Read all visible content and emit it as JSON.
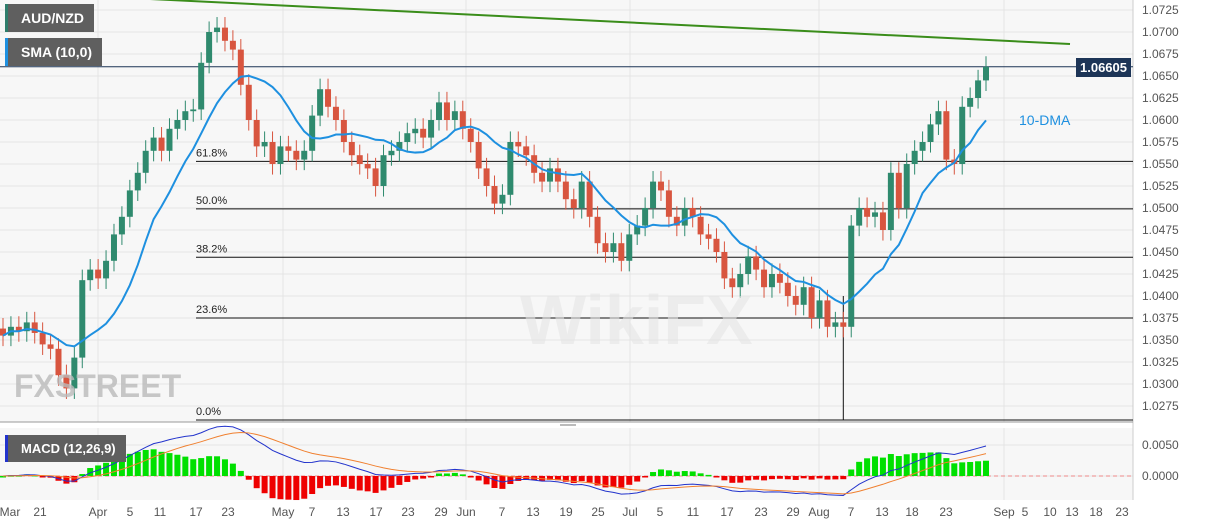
{
  "header": {
    "symbol": "AUD/NZD",
    "indicator": "SMA (10,0)",
    "macd": "MACD (12,26,9)",
    "last_price": "1.06605",
    "dma_label": "10-DMA",
    "watermark": "FXSTREET",
    "watermark2": "WikiFX"
  },
  "chart_data": {
    "type": "candlestick",
    "series_name": "AUD/NZD",
    "ylim": [
      1.0262,
      1.0737
    ],
    "y_ticks": [
      "1.0725",
      "1.0700",
      "1.0675",
      "1.0650",
      "1.0625",
      "1.0600",
      "1.0575",
      "1.0550",
      "1.0525",
      "1.0500",
      "1.0475",
      "1.0450",
      "1.0425",
      "1.0400",
      "1.0375",
      "1.0350",
      "1.0325",
      "1.0300",
      "1.0275"
    ],
    "x_ticks": [
      "Mar",
      "21",
      "Apr",
      "5",
      "11",
      "17",
      "23",
      "May",
      "7",
      "13",
      "17",
      "23",
      "29",
      "Jun",
      "7",
      "13",
      "19",
      "25",
      "Jul",
      "5",
      "11",
      "17",
      "23",
      "29",
      "Aug",
      "7",
      "13",
      "18",
      "23",
      "Sep",
      "5",
      "10",
      "13",
      "18",
      "23"
    ],
    "closes": [
      1.0355,
      1.0365,
      1.036,
      1.037,
      1.0358,
      1.0345,
      1.034,
      1.031,
      1.0295,
      1.033,
      1.0418,
      1.043,
      1.042,
      1.044,
      1.047,
      1.049,
      1.052,
      1.054,
      1.0565,
      1.058,
      1.0565,
      1.059,
      1.06,
      1.061,
      1.0612,
      1.0665,
      1.07,
      1.0705,
      1.069,
      1.068,
      1.064,
      1.06,
      1.057,
      1.0575,
      1.055,
      1.057,
      1.0565,
      1.0555,
      1.0565,
      1.0605,
      1.0635,
      1.0615,
      1.06,
      1.0575,
      1.056,
      1.055,
      1.0545,
      1.0525,
      1.056,
      1.0565,
      1.0575,
      1.0585,
      1.059,
      1.058,
      1.06,
      1.062,
      1.06,
      1.061,
      1.059,
      1.0575,
      1.0545,
      1.0525,
      1.0505,
      1.0515,
      1.0575,
      1.057,
      1.056,
      1.054,
      1.053,
      1.0545,
      1.053,
      1.051,
      1.05,
      1.053,
      1.049,
      1.046,
      1.045,
      1.046,
      1.044,
      1.047,
      1.048,
      1.05,
      1.053,
      1.052,
      1.049,
      1.048,
      1.05,
      1.049,
      1.047,
      1.0465,
      1.045,
      1.042,
      1.041,
      1.0425,
      1.0445,
      1.043,
      1.041,
      1.0425,
      1.0415,
      1.04,
      1.039,
      1.041,
      1.0375,
      1.0395,
      1.0365,
      1.037,
      1.0365,
      1.048,
      1.05,
      1.049,
      1.0495,
      1.0475,
      1.054,
      1.05,
      1.055,
      1.0565,
      1.0575,
      1.0595,
      1.061,
      1.0555,
      1.055,
      1.0615,
      1.0625,
      1.0645,
      1.06605
    ],
    "sma_period": 10,
    "fibonacci": [
      {
        "label": "61.8%",
        "value": 1.0553
      },
      {
        "label": "50.0%",
        "value": 1.0499
      },
      {
        "label": "38.2%",
        "value": 1.0444
      },
      {
        "label": "23.6%",
        "value": 1.0375
      },
      {
        "label": "0.0%",
        "value": 1.0264
      }
    ],
    "trendline": {
      "color": "#3a8d1a"
    },
    "macd": {
      "fast": 12,
      "slow": 26,
      "signal": 9,
      "ylim": [
        -0.0035,
        0.0075
      ],
      "y_ticks": [
        "0.0050",
        "0.0000"
      ]
    },
    "colors": {
      "up": "#2f8a6e",
      "down": "#d8553f",
      "sma": "#1e90e0",
      "macd": "#2233cc",
      "signal": "#f08030",
      "hist_pos": "#00e000",
      "hist_neg": "#ee0000"
    }
  }
}
